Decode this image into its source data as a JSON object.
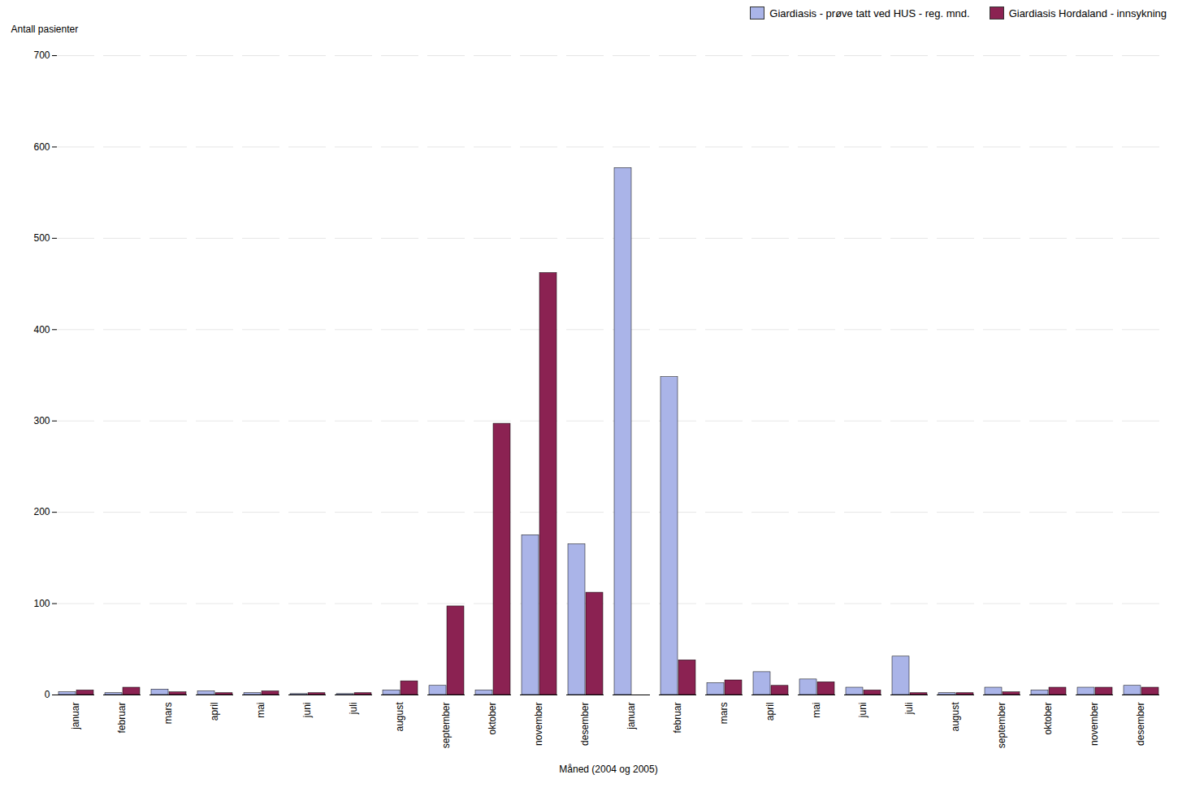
{
  "chart_data": {
    "type": "bar",
    "categories": [
      "januar",
      "februar",
      "mars",
      "april",
      "mai",
      "juni",
      "juli",
      "august",
      "september",
      "oktober",
      "november",
      "desember",
      "januar",
      "februar",
      "mars",
      "april",
      "mai",
      "juni",
      "juli",
      "august",
      "september",
      "oktober",
      "november",
      "desember"
    ],
    "series": [
      {
        "name": "Giardiasis - prøve tatt ved HUS - reg. mnd.",
        "color": "#aab4e8",
        "values": [
          3,
          2,
          6,
          4,
          2,
          1,
          1,
          5,
          10,
          5,
          175,
          165,
          577,
          348,
          13,
          25,
          17,
          8,
          42,
          2,
          8,
          5,
          8,
          10
        ]
      },
      {
        "name": "Giardiasis Hordaland - innsykning",
        "color": "#8B2252",
        "values": [
          5,
          8,
          3,
          2,
          4,
          2,
          2,
          15,
          97,
          297,
          462,
          112,
          0,
          38,
          16,
          10,
          14,
          5,
          2,
          2,
          3,
          8,
          8,
          8
        ]
      }
    ],
    "xlabel": "Måned (2004 og 2005)",
    "ylabel": "Antall pasienter",
    "ylim": [
      0,
      700
    ],
    "yticks": [
      0,
      100,
      200,
      300,
      400,
      500,
      600,
      700
    ],
    "grid": true,
    "legend": "upper right"
  }
}
